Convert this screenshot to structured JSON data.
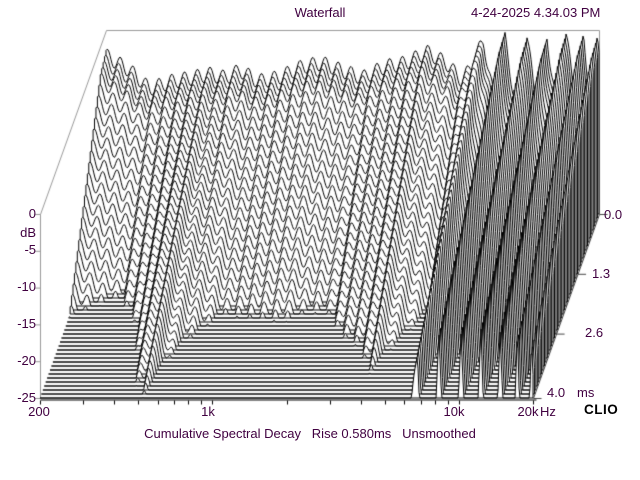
{
  "header": {
    "title": "Waterfall",
    "timestamp": "4-24-2025 4.34.03 PM"
  },
  "footer": {
    "annotation": "Cumulative Spectral Decay   Rise 0.580ms   Unsmoothed",
    "brand": "CLIO"
  },
  "colors": {
    "background": "#ffffff",
    "text": "#400040",
    "frame": "#999999",
    "axis": "#444444",
    "curve": "#000000",
    "fill": "#ffffff",
    "brand_text": "#000000"
  },
  "chart_data": {
    "type": "waterfall",
    "title": "Waterfall",
    "measurement": "Cumulative Spectral Decay",
    "rise_ms": 0.58,
    "smoothing": "Unsmoothed",
    "freq_axis": {
      "scale": "log",
      "min_hz": 200,
      "max_hz": 20000,
      "unit": "Hz",
      "tick_labels": [
        "200",
        "1k",
        "10k",
        "20k"
      ],
      "tick_hz": [
        200,
        1000,
        10000,
        20000
      ],
      "minor_ticks_hz": [
        300,
        400,
        500,
        600,
        700,
        800,
        900,
        2000,
        3000,
        4000,
        5000,
        6000,
        7000,
        8000,
        9000
      ]
    },
    "level_axis": {
      "unit": "dB",
      "min_db": -25,
      "max_db": 0,
      "tick_db": [
        0,
        -5,
        -10,
        -15,
        -20,
        -25
      ],
      "tick_labels": [
        "0",
        "-5",
        "-10",
        "-15",
        "-20",
        "-25"
      ]
    },
    "time_axis": {
      "unit": "ms",
      "min_ms": 0.0,
      "max_ms": 4.0,
      "tick_ms": [
        0.0,
        1.3,
        2.6,
        4.0
      ],
      "tick_labels": [
        "0.0",
        "1.3",
        "2.6",
        "4.0"
      ]
    },
    "slices": 47,
    "decay_soft_start": {
      "until_ms": 0.35,
      "rate_factor": 0.3
    },
    "ripple": {
      "amplitude_db": 1.0,
      "period_decades": 0.052,
      "phase_rad": 0.8
    },
    "response_points": [
      [
        200,
        -3.5,
        11
      ],
      [
        250,
        -5.5,
        11.5
      ],
      [
        300,
        -8,
        11
      ],
      [
        370,
        -7,
        9
      ],
      [
        450,
        -6.5,
        5.8
      ],
      [
        520,
        -6,
        5.2
      ],
      [
        610,
        -6.5,
        7
      ],
      [
        700,
        -5.5,
        8.5
      ],
      [
        830,
        -7,
        9.5
      ],
      [
        1000,
        -6.5,
        9.5
      ],
      [
        1250,
        -5,
        10
      ],
      [
        1500,
        -4.5,
        10
      ],
      [
        1800,
        -5.5,
        10.5
      ],
      [
        2200,
        -6.5,
        10
      ],
      [
        2700,
        -5,
        8.5
      ],
      [
        3300,
        -4.5,
        8
      ],
      [
        4000,
        -3,
        7
      ],
      [
        4800,
        -4.5,
        8.5
      ],
      [
        5600,
        -7,
        9.5
      ],
      [
        6800,
        -1.5,
        4.6
      ],
      [
        7500,
        -9.5,
        11
      ],
      [
        8300,
        -1.2,
        4.2
      ],
      [
        9200,
        -10.5,
        11
      ],
      [
        10200,
        -0.8,
        4
      ],
      [
        11200,
        -11,
        11
      ],
      [
        12300,
        -1,
        3.8
      ],
      [
        13400,
        -10,
        11
      ],
      [
        14700,
        -0.6,
        4.1
      ],
      [
        16000,
        -9.5,
        11
      ],
      [
        17300,
        -1.2,
        4
      ],
      [
        18500,
        -10,
        11
      ],
      [
        19700,
        -1,
        4.4
      ],
      [
        20000,
        -2.5,
        5
      ]
    ]
  }
}
